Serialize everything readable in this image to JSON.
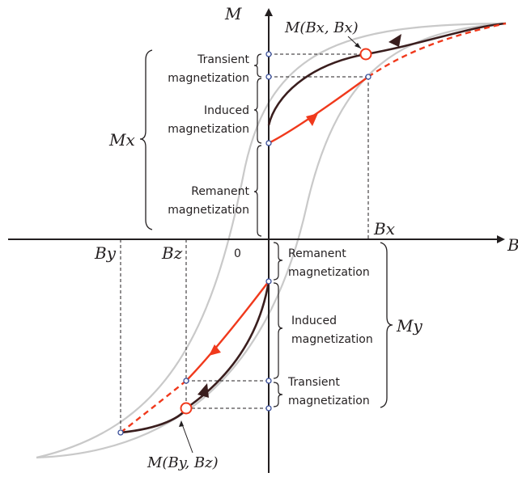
{
  "axes": {
    "y_label": "M",
    "x_label": "B",
    "origin_label": "0"
  },
  "ticks": {
    "bx": "Bx",
    "by": "By",
    "bz": "Bz"
  },
  "points": {
    "upper": "M(Bx, Bx)",
    "lower": "M(By, Bz)"
  },
  "braces": {
    "mx_label": "Mx",
    "my_label": "My"
  },
  "upper_labels": {
    "transient": [
      "Transient",
      "magnetization"
    ],
    "induced": [
      "Induced",
      "magnetization"
    ],
    "remanent": [
      "Remanent",
      "magnetization"
    ]
  },
  "lower_labels": {
    "remanent": [
      "Remanent",
      "magnetization"
    ],
    "induced": [
      "Induced",
      "magnetization"
    ],
    "transient": [
      "Transient",
      "magnetization"
    ]
  },
  "colors": {
    "outer_loop": "#c9c9c9",
    "minor_loop": "#3a1e1e",
    "recoil": "#f0391c",
    "point": "#f0391c",
    "marker": "#3a4f9a",
    "text": "#231f20"
  }
}
